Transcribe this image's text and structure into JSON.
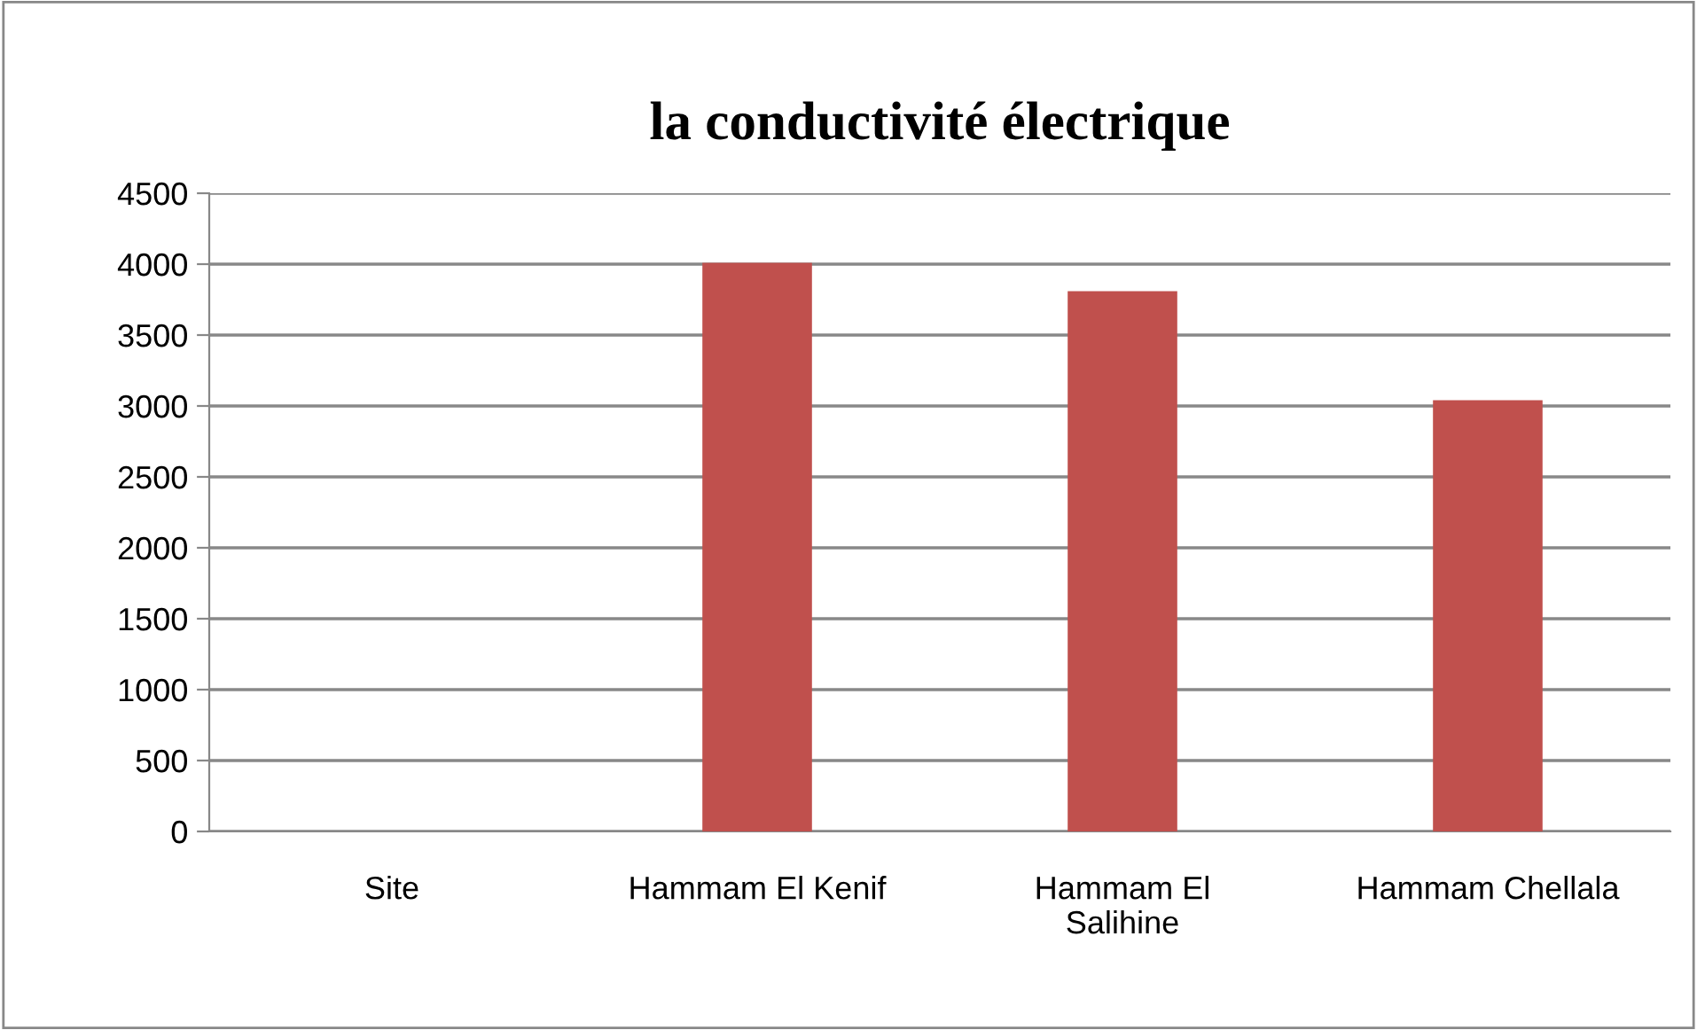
{
  "chart_data": {
    "type": "bar",
    "title": "la conductivité électrique",
    "categories": [
      "Site",
      "Hammam El Kenif",
      "Hammam El\nSalihine",
      "Hammam Chellala"
    ],
    "values": [
      null,
      4010,
      3810,
      3040
    ],
    "color": "#c0504d",
    "ylim": [
      0,
      4500
    ],
    "yticks": [
      0,
      500,
      1000,
      1500,
      2000,
      2500,
      3000,
      3500,
      4000,
      4500
    ],
    "grid": "y",
    "legend": false
  }
}
